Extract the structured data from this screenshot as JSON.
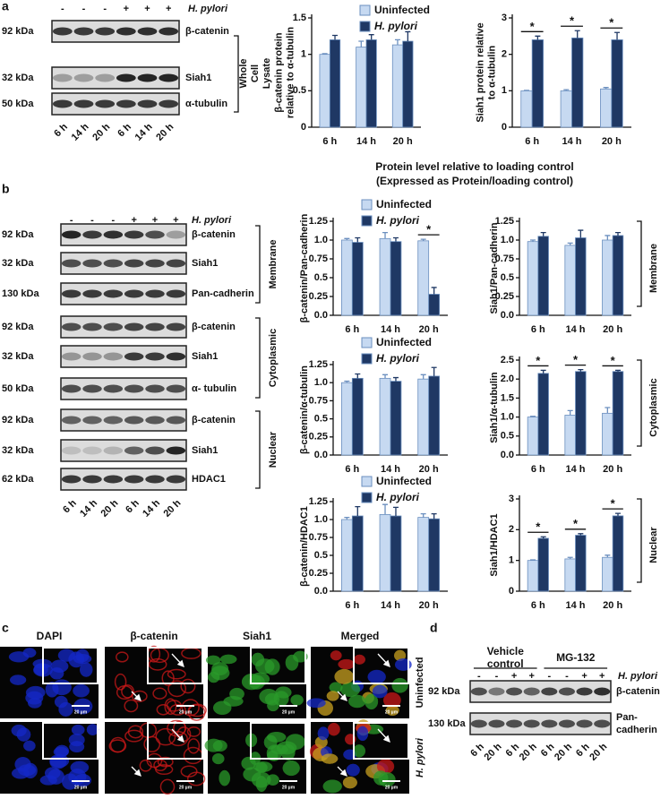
{
  "panel_a": {
    "label": "a",
    "treatment": "H. pylori",
    "signs": [
      "-",
      "-",
      "-",
      "+",
      "+",
      "+"
    ],
    "rows": [
      {
        "kda": "92 kDa",
        "protein": "β-catenin"
      },
      {
        "kda": "32 kDa",
        "protein": "Siah1"
      },
      {
        "kda": "50 kDa",
        "protein": "α-tubulin"
      }
    ],
    "fraction": "Whole Cell Lysate",
    "times": [
      "6 h",
      "14 h",
      "20 h",
      "6 h",
      "14 h",
      "20 h"
    ]
  },
  "panel_b": {
    "label": "b",
    "header": [
      "Protein level relative to loading control",
      "(Expressed as Protein/loading control)"
    ],
    "treatment": "H. pylori",
    "signs": [
      "-",
      "-",
      "-",
      "+",
      "+",
      "+"
    ],
    "fractions": [
      {
        "name": "Membrane",
        "rows": [
          {
            "kda": "92 kDa",
            "protein": "β-catenin"
          },
          {
            "kda": "32 kDa",
            "protein": "Siah1"
          },
          {
            "kda": "130 kDa",
            "protein": "Pan-cadherin"
          }
        ]
      },
      {
        "name": "Cytoplasmic",
        "rows": [
          {
            "kda": "92 kDa",
            "protein": "β-catenin"
          },
          {
            "kda": "32 kDa",
            "protein": "Siah1"
          },
          {
            "kda": "50 kDa",
            "protein": "α- tubulin"
          }
        ]
      },
      {
        "name": "Nuclear",
        "rows": [
          {
            "kda": "92 kDa",
            "protein": "β-catenin"
          },
          {
            "kda": "32 kDa",
            "protein": "Siah1"
          },
          {
            "kda": "62 kDa",
            "protein": "HDAC1"
          }
        ]
      }
    ],
    "times": [
      "6 h",
      "14 h",
      "20 h",
      "6 h",
      "14 h",
      "20 h"
    ]
  },
  "panel_c": {
    "label": "c",
    "columns": [
      "DAPI",
      "β-catenin",
      "Siah1",
      "Merged"
    ],
    "rows": [
      "Uninfected",
      "H. pylori"
    ],
    "scale_bar": "20 µm"
  },
  "panel_d": {
    "label": "d",
    "groups": [
      "Vehicle control",
      "MG-132"
    ],
    "treatment": "H. pylori",
    "signs": [
      "-",
      "-",
      "+",
      "+",
      "-",
      "-",
      "+",
      "+"
    ],
    "rows": [
      {
        "kda": "92 kDa",
        "protein": "β-catenin"
      },
      {
        "kda": "130 kDa",
        "protein": "Pan-cadherin"
      }
    ],
    "times": [
      "6 h",
      "20 h",
      "6 h",
      "20 h",
      "6 h",
      "20 h",
      "6 h",
      "20 h"
    ]
  },
  "chart_data": [
    {
      "type": "bar",
      "ylabel": "β-catenin protein relative to α-tubulin",
      "categories": [
        "6 h",
        "14 h",
        "20 h"
      ],
      "legend": true,
      "series": [
        {
          "name": "Uninfected",
          "color": "#c6d9f1",
          "values": [
            1.0,
            1.1,
            1.13
          ],
          "errors": [
            0.01,
            0.08,
            0.07
          ]
        },
        {
          "name": "H. pylori",
          "color": "#1f3864",
          "values": [
            1.2,
            1.2,
            1.18
          ],
          "errors": [
            0.06,
            0.07,
            0.13
          ]
        }
      ],
      "ylim": [
        0,
        1.5
      ],
      "yticks": [
        0,
        0.5,
        1,
        1.5
      ]
    },
    {
      "type": "bar",
      "ylabel": "Siah1 protein relative to α-tubulin",
      "categories": [
        "6 h",
        "14 h",
        "20 h"
      ],
      "legend": false,
      "series": [
        {
          "color": "#c6d9f1",
          "values": [
            1.0,
            1.0,
            1.05
          ],
          "errors": [
            0.01,
            0.03,
            0.04
          ]
        },
        {
          "color": "#1f3864",
          "values": [
            2.4,
            2.45,
            2.4
          ],
          "errors": [
            0.1,
            0.2,
            0.2
          ]
        }
      ],
      "significance": [
        "*",
        "*",
        "*"
      ],
      "ylim": [
        0,
        3
      ],
      "yticks": [
        0,
        1,
        2,
        3
      ]
    },
    {
      "type": "bar",
      "ylabel": "β-catenin/Pan-cadherin",
      "categories": [
        "6 h",
        "14 h",
        "20 h"
      ],
      "legend": true,
      "series": [
        {
          "name": "Uninfected",
          "color": "#c6d9f1",
          "values": [
            1.0,
            1.02,
            0.99
          ],
          "errors": [
            0.02,
            0.08,
            0.02
          ]
        },
        {
          "name": "H. pylori",
          "color": "#1f3864",
          "values": [
            0.97,
            0.98,
            0.28
          ],
          "errors": [
            0.06,
            0.05,
            0.09
          ]
        }
      ],
      "significance": [
        null,
        null,
        "*"
      ],
      "ylim": [
        0,
        1.25
      ],
      "yticks": [
        {
          "value": 0,
          "label": "0.0"
        },
        0.25,
        0.5,
        0.75,
        {
          "value": 1,
          "label": "1.0"
        },
        1.25
      ]
    },
    {
      "type": "bar",
      "ylabel": "Siah1/Pan-cadherin",
      "categories": [
        "6 h",
        "14 h",
        "20 h"
      ],
      "legend": false,
      "side_label": "Membrane",
      "series": [
        {
          "color": "#c6d9f1",
          "values": [
            0.98,
            0.93,
            1.0
          ],
          "errors": [
            0.02,
            0.03,
            0.06
          ]
        },
        {
          "color": "#1f3864",
          "values": [
            1.05,
            1.03,
            1.06
          ],
          "errors": [
            0.05,
            0.1,
            0.04
          ]
        }
      ],
      "ylim": [
        0,
        1.25
      ],
      "yticks": [
        {
          "value": 0,
          "label": "0.0"
        },
        0.25,
        0.5,
        0.75,
        {
          "value": 1,
          "label": "1.0"
        },
        1.25
      ]
    },
    {
      "type": "bar",
      "ylabel": "β-catenin/α-tubulin",
      "categories": [
        "6 h",
        "14 h",
        "20 h"
      ],
      "legend": true,
      "series": [
        {
          "name": "Uninfected",
          "color": "#c6d9f1",
          "values": [
            1.0,
            1.06,
            1.05
          ],
          "errors": [
            0.02,
            0.05,
            0.06
          ]
        },
        {
          "name": "H. pylori",
          "color": "#1f3864",
          "values": [
            1.06,
            1.02,
            1.09
          ],
          "errors": [
            0.06,
            0.05,
            0.12
          ]
        }
      ],
      "ylim": [
        0,
        1.25
      ],
      "yticks": [
        {
          "value": 0,
          "label": "0.0"
        },
        0.25,
        0.5,
        0.75,
        {
          "value": 1,
          "label": "1.0"
        },
        1.25
      ]
    },
    {
      "type": "bar",
      "ylabel": "Siah1/α-tubulin",
      "categories": [
        "6 h",
        "14 h",
        "20 h"
      ],
      "legend": false,
      "side_label": "Cytoplasmic",
      "series": [
        {
          "color": "#c6d9f1",
          "values": [
            1.0,
            1.05,
            1.1
          ],
          "errors": [
            0.02,
            0.12,
            0.15
          ]
        },
        {
          "color": "#1f3864",
          "values": [
            2.15,
            2.2,
            2.2
          ],
          "errors": [
            0.08,
            0.05,
            0.03
          ]
        }
      ],
      "significance": [
        "*",
        "*",
        "*"
      ],
      "ylim": [
        0,
        2.5
      ],
      "yticks": [
        {
          "value": 0,
          "label": "0.0"
        },
        0.5,
        {
          "value": 1,
          "label": "1.0"
        },
        1.5,
        {
          "value": 2,
          "label": "2.0"
        },
        2.5
      ]
    },
    {
      "type": "bar",
      "ylabel": "β-catenin/HDAC1",
      "categories": [
        "6 h",
        "14 h",
        "20 h"
      ],
      "legend": true,
      "series": [
        {
          "name": "Uninfected",
          "color": "#c6d9f1",
          "values": [
            1.0,
            1.07,
            1.03
          ],
          "errors": [
            0.03,
            0.14,
            0.05
          ]
        },
        {
          "name": "H. pylori",
          "color": "#1f3864",
          "values": [
            1.05,
            1.05,
            1.01
          ],
          "errors": [
            0.13,
            0.12,
            0.07
          ]
        }
      ],
      "ylim": [
        0,
        1.25
      ],
      "yticks": [
        {
          "value": 0,
          "label": "0.0"
        },
        0.25,
        0.5,
        0.75,
        {
          "value": 1,
          "label": "1.0"
        },
        1.25
      ]
    },
    {
      "type": "bar",
      "ylabel": "Siah1/HDAC1",
      "categories": [
        "6 h",
        "14 h",
        "20 h"
      ],
      "legend": false,
      "side_label": "Nuclear",
      "series": [
        {
          "color": "#c6d9f1",
          "values": [
            1.0,
            1.05,
            1.1
          ],
          "errors": [
            0.02,
            0.05,
            0.07
          ]
        },
        {
          "color": "#1f3864",
          "values": [
            1.72,
            1.82,
            2.45
          ],
          "errors": [
            0.05,
            0.05,
            0.08
          ]
        }
      ],
      "significance": [
        "*",
        "*",
        "*"
      ],
      "ylim": [
        0,
        3
      ],
      "yticks": [
        0,
        1,
        2,
        3
      ]
    }
  ]
}
